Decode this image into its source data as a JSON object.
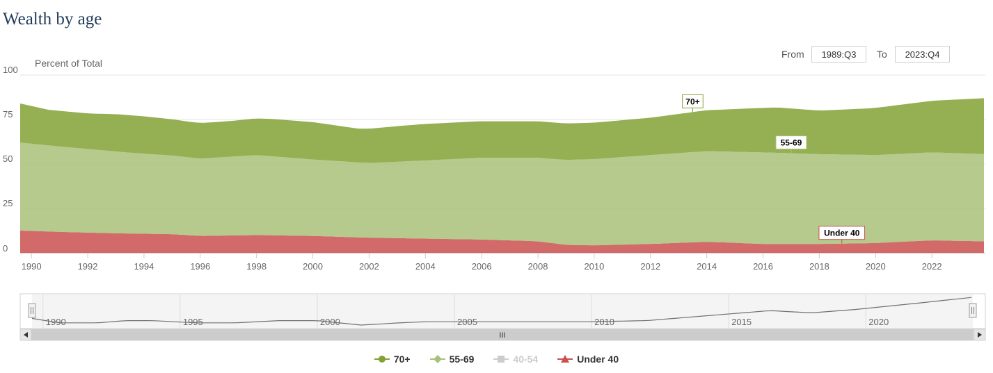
{
  "page": {
    "title": "Wealth by age"
  },
  "range": {
    "from_label": "From",
    "from_value": "1989:Q3",
    "to_label": "To",
    "to_value": "2023:Q4"
  },
  "navigator": {
    "scroll_grip": "III"
  },
  "colors": {
    "under40": "#c9504f",
    "band5569": "#a8c178",
    "band70": "#82a135",
    "disabled": "#cccccc",
    "navigator_line": "#707070"
  },
  "chart_data": {
    "type": "area",
    "stacking": "percent",
    "title": "",
    "ylabel": "Percent of Total",
    "xlabel": "",
    "ylim": [
      0,
      100
    ],
    "yticks": [
      0,
      25,
      50,
      75,
      100
    ],
    "xlim": [
      1989.6,
      2023.9
    ],
    "xticks": [
      1990,
      1992,
      1994,
      1996,
      1998,
      2000,
      2002,
      2004,
      2006,
      2008,
      2010,
      2012,
      2014,
      2016,
      2018,
      2020,
      2022
    ],
    "grid": "horizontal",
    "legend_position": "bottom",
    "series": [
      {
        "name": "Under 40",
        "key": "under40",
        "x": [
          1989.6,
          1991,
          1993,
          1995,
          1996,
          1998,
          2000,
          2002,
          2004,
          2006,
          2008,
          2009,
          2010,
          2012,
          2014,
          2016,
          2018,
          2020,
          2022,
          2023.9
        ],
        "y": [
          12.5,
          11.8,
          11,
          10.5,
          9.5,
          10,
          9.5,
          8.5,
          8,
          7.5,
          6.5,
          4.5,
          4.2,
          5,
          6.2,
          5,
          5,
          5.5,
          7,
          6.5
        ]
      },
      {
        "name": "55-69",
        "key": "band5569",
        "x": [
          1989.6,
          1992,
          1994,
          1996,
          1998,
          2000,
          2002,
          2004,
          2006,
          2008,
          2010,
          2012,
          2014,
          2016,
          2018,
          2020,
          2022,
          2023.9
        ],
        "y": [
          49.5,
          47,
          45,
          43.5,
          45,
          43,
          42,
          44,
          46,
          47,
          48.5,
          50,
          51,
          51.5,
          50.5,
          49.5,
          49.5,
          49
        ]
      },
      {
        "name": "40-54",
        "key": "disabled",
        "disabled": true,
        "x": [],
        "y": []
      },
      {
        "name": "70+",
        "key": "band70",
        "x": [
          1989.6,
          1990.6,
          1992,
          1993,
          1994,
          1995.6,
          1997,
          1998.6,
          2000,
          2001.6,
          2003,
          2004,
          2006,
          2008,
          2010,
          2012,
          2014,
          2016.5,
          2018,
          2019.6,
          2020,
          2022,
          2023.9
        ],
        "y": [
          22,
          20,
          20,
          21,
          21,
          20,
          20,
          21,
          21,
          19,
          20,
          20.5,
          20.5,
          20.5,
          20.5,
          21,
          23,
          25.5,
          24.5,
          26,
          26.5,
          29,
          31.5
        ]
      }
    ],
    "flags": [
      {
        "series": "70+",
        "label": "70+",
        "x": 2013.5
      },
      {
        "series": "55-69",
        "label": "55-69",
        "x": 2017
      },
      {
        "series": "Under 40",
        "label": "Under 40",
        "x": 2018.8
      }
    ],
    "navigator": {
      "xticks": [
        1990,
        1995,
        2000,
        2005,
        2010,
        2015,
        2020
      ]
    }
  }
}
